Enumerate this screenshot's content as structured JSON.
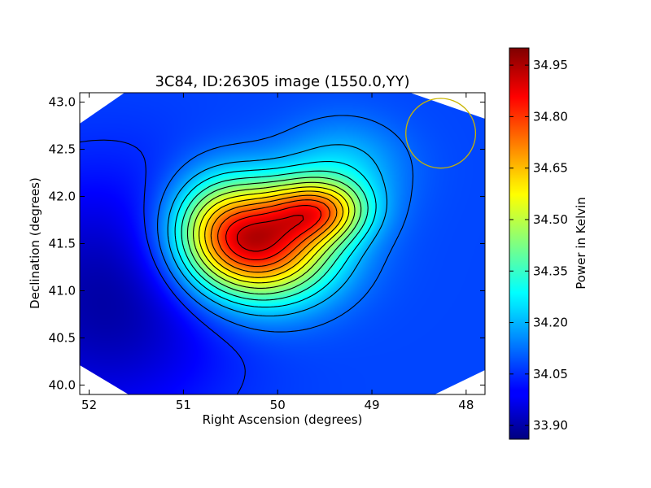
{
  "chart_data": {
    "type": "heatmap",
    "title": "3C84, ID:26305 image (1550.0,YY)",
    "xlabel": "Right Ascension (degrees)",
    "ylabel": "Declination (degrees)",
    "xlim": [
      52.1,
      47.8
    ],
    "ylim": [
      39.9,
      43.1
    ],
    "x_inverted": true,
    "xticks": [
      52,
      51,
      50,
      49,
      48
    ],
    "xtick_labels": [
      "52",
      "51",
      "50",
      "49",
      "48"
    ],
    "yticks": [
      40.0,
      40.5,
      41.0,
      41.5,
      42.0,
      42.5,
      43.0
    ],
    "ytick_labels": [
      "40.0",
      "40.5",
      "41.0",
      "41.5",
      "42.0",
      "42.5",
      "43.0"
    ],
    "colormap": "jet",
    "colorbar": {
      "label": "Power in Kelvin",
      "range": [
        33.86,
        35.0
      ],
      "ticks": [
        33.9,
        34.05,
        34.2,
        34.35,
        34.5,
        34.65,
        34.8,
        34.95
      ],
      "tick_labels": [
        "33.90",
        "34.05",
        "34.20",
        "34.35",
        "34.50",
        "34.65",
        "34.80",
        "34.95"
      ]
    },
    "background_level": 34.08,
    "low_region": {
      "ra": 51.8,
      "dec": 40.9,
      "amp": -0.18,
      "sigma_ra": 0.9,
      "sigma_dec": 0.9
    },
    "sources": [
      {
        "ra": 50.2,
        "dec": 41.5,
        "amp": 0.8,
        "sigma_ra": 0.55,
        "sigma_dec": 0.42
      },
      {
        "ra": 49.55,
        "dec": 41.85,
        "amp": 0.42,
        "sigma_ra": 0.35,
        "sigma_dec": 0.22
      },
      {
        "ra": 50.65,
        "dec": 41.75,
        "amp": 0.18,
        "sigma_ra": 0.35,
        "sigma_dec": 0.38
      },
      {
        "ra": 49.3,
        "dec": 42.3,
        "amp": 0.14,
        "sigma_ra": 0.45,
        "sigma_dec": 0.35
      }
    ],
    "contour_levels": [
      34.05,
      34.12,
      34.2,
      34.27,
      34.34,
      34.41,
      34.48,
      34.55,
      34.62,
      34.69,
      34.76,
      34.83,
      34.9,
      34.95
    ],
    "beam_circle": {
      "ra": 48.27,
      "dec": 42.67,
      "radius_deg": 0.37,
      "color": "#c8b400"
    },
    "masked_corners_color": "#ffffff",
    "contour_color": "#000000"
  }
}
